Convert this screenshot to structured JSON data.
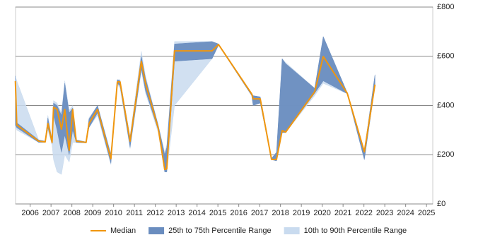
{
  "chart_data": {
    "type": "line",
    "x": [
      2005.29,
      2005.36,
      2006.41,
      2006.72,
      2006.85,
      2007.05,
      2007.12,
      2007.29,
      2007.5,
      2007.66,
      2007.87,
      2008.04,
      2008.21,
      2008.68,
      2008.82,
      2009.23,
      2009.87,
      2010.18,
      2010.31,
      2010.79,
      2011.33,
      2011.53,
      2012.14,
      2012.45,
      2012.55,
      2012.92,
      2014.72,
      2015.03,
      2016.62,
      2016.69,
      2017.03,
      2017.57,
      2017.81,
      2018.08,
      2018.25,
      2019.64,
      2020.05,
      2021.2,
      2022.02,
      2022.53
    ],
    "series": [
      {
        "name": "Median",
        "color": "#f0960e",
        "values": [
          499,
          321,
          255,
          252,
          327,
          250,
          393,
          384,
          304,
          384,
          218,
          384,
          255,
          250,
          327,
          384,
          184,
          496,
          496,
          255,
          579,
          490,
          307,
          140,
          143,
          622,
          622,
          648,
          447,
          427,
          427,
          181,
          181,
          298,
          292,
          456,
          599,
          450,
          212,
          485
        ]
      },
      {
        "name": "25th to 75th Percentile Range",
        "color": "#6a8dbf",
        "lower": [
          320,
          310,
          250,
          250,
          310,
          245,
          360,
          300,
          210,
          280,
          200,
          300,
          250,
          248,
          310,
          370,
          165,
          490,
          480,
          230,
          550,
          460,
          300,
          130,
          130,
          580,
          590,
          645,
          440,
          400,
          410,
          180,
          175,
          290,
          290,
          450,
          500,
          448,
          180,
          480
        ],
        "upper": [
          520,
          330,
          260,
          255,
          350,
          260,
          410,
          400,
          360,
          490,
          370,
          390,
          260,
          252,
          345,
          400,
          200,
          505,
          500,
          270,
          600,
          510,
          320,
          200,
          230,
          650,
          660,
          650,
          450,
          440,
          435,
          185,
          210,
          590,
          570,
          470,
          680,
          452,
          215,
          525
        ]
      },
      {
        "name": "10th to 90th Percentile Range",
        "color": "#c9dbef",
        "lower": [
          320,
          300,
          250,
          250,
          300,
          240,
          180,
          130,
          120,
          200,
          170,
          250,
          250,
          248,
          310,
          360,
          160,
          485,
          470,
          225,
          540,
          450,
          290,
          130,
          130,
          400,
          590,
          645,
          440,
          400,
          410,
          180,
          175,
          290,
          290,
          440,
          490,
          448,
          180,
          480
        ],
        "upper": [
          520,
          500,
          260,
          255,
          360,
          262,
          420,
          410,
          370,
          500,
          380,
          400,
          260,
          252,
          350,
          400,
          205,
          505,
          505,
          275,
          620,
          520,
          320,
          210,
          240,
          660,
          660,
          650,
          450,
          440,
          435,
          185,
          210,
          590,
          575,
          470,
          680,
          452,
          215,
          525
        ]
      }
    ],
    "xlim": [
      2005.3,
      2025.3
    ],
    "xticks": [
      2006,
      2007,
      2008,
      2009,
      2010,
      2011,
      2012,
      2013,
      2014,
      2015,
      2016,
      2017,
      2018,
      2019,
      2020,
      2021,
      2022,
      2023,
      2024,
      2025
    ],
    "ylim": [
      0,
      800
    ],
    "yticks": [
      {
        "value": 0,
        "label": "£0"
      },
      {
        "value": 200,
        "label": "£200"
      },
      {
        "value": 400,
        "label": "£400"
      },
      {
        "value": 600,
        "label": "£600"
      },
      {
        "value": 800,
        "label": "£800"
      }
    ],
    "grid": true
  }
}
